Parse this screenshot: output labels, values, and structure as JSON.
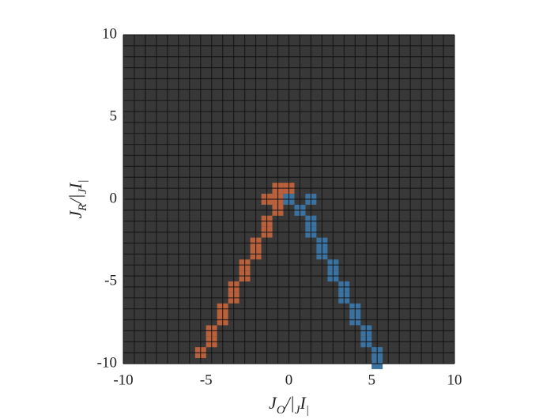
{
  "chart_data": {
    "type": "heatmap",
    "xlabel": {
      "parts": [
        "J",
        "O",
        "/|",
        "J",
        "I",
        "|"
      ]
    },
    "ylabel": {
      "parts": [
        "J",
        "R",
        "/|",
        "J",
        "I",
        "|"
      ]
    },
    "xlim": [
      -10,
      10
    ],
    "ylim": [
      -10,
      10
    ],
    "xticks": [
      -10,
      -5,
      0,
      5,
      10
    ],
    "yticks": [
      -10,
      -5,
      0,
      5,
      10
    ],
    "background": "#383838",
    "series": [
      {
        "color": "#b8613c",
        "x": [
          -5.33,
          -4.67,
          -4.67,
          -4,
          -4,
          -3.33,
          -3.33,
          -2.67,
          -2.67,
          -2,
          -2,
          -1.33,
          -1.33,
          -0.67,
          -0.67,
          -1.33,
          -0.67,
          0
        ],
        "y": [
          -9.33,
          -8.67,
          -8,
          -7.33,
          -6.67,
          -6,
          -5.33,
          -4.67,
          -4,
          -3.33,
          -2.67,
          -2,
          -1.33,
          -0.67,
          0,
          0,
          0.67,
          0.67
        ]
      },
      {
        "color": "#3c72a0",
        "x": [
          0.67,
          1.33,
          1.33,
          2,
          2,
          2.67,
          2.67,
          3.33,
          3.33,
          4,
          4,
          4.67,
          4.67,
          5.33,
          5.33,
          0,
          1.33
        ],
        "y": [
          -0.67,
          -1.33,
          -2,
          -2.67,
          -3.33,
          -4,
          -4.67,
          -5.33,
          -6,
          -6.67,
          -7.33,
          -8,
          -8.67,
          -9.33,
          -10,
          0,
          0
        ]
      }
    ]
  }
}
